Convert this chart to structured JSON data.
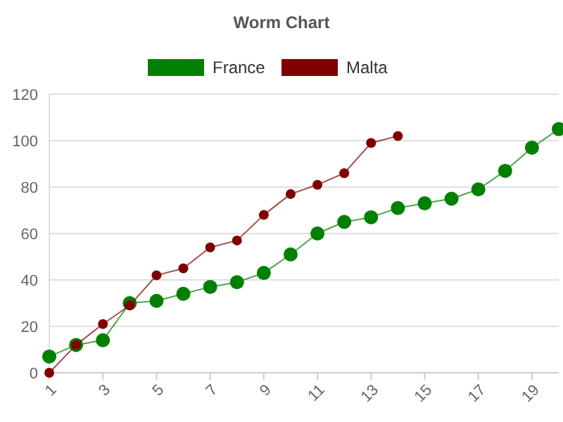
{
  "chart_data": {
    "type": "line",
    "title": "Worm Chart",
    "x": [
      1,
      2,
      3,
      4,
      5,
      6,
      7,
      8,
      9,
      10,
      11,
      12,
      13,
      14,
      15,
      16,
      17,
      18,
      19,
      20
    ],
    "series": [
      {
        "name": "France",
        "color": "#008000",
        "values": [
          7,
          12,
          14,
          30,
          31,
          34,
          37,
          39,
          43,
          51,
          60,
          65,
          67,
          71,
          73,
          75,
          79,
          87,
          97,
          105
        ]
      },
      {
        "name": "Malta",
        "color": "#800000",
        "values": [
          0,
          12,
          21,
          29,
          42,
          45,
          54,
          57,
          68,
          77,
          81,
          86,
          99,
          102,
          null,
          null,
          null,
          null,
          null,
          null
        ]
      }
    ],
    "xlim": [
      1,
      20
    ],
    "xticks": [
      1,
      3,
      5,
      7,
      9,
      11,
      13,
      15,
      17,
      19
    ],
    "ylim": [
      0,
      120
    ],
    "yticks": [
      0,
      20,
      40,
      60,
      80,
      100,
      120
    ],
    "grid": "y",
    "legend": "top",
    "marker": "circle",
    "line_style": "solid"
  }
}
